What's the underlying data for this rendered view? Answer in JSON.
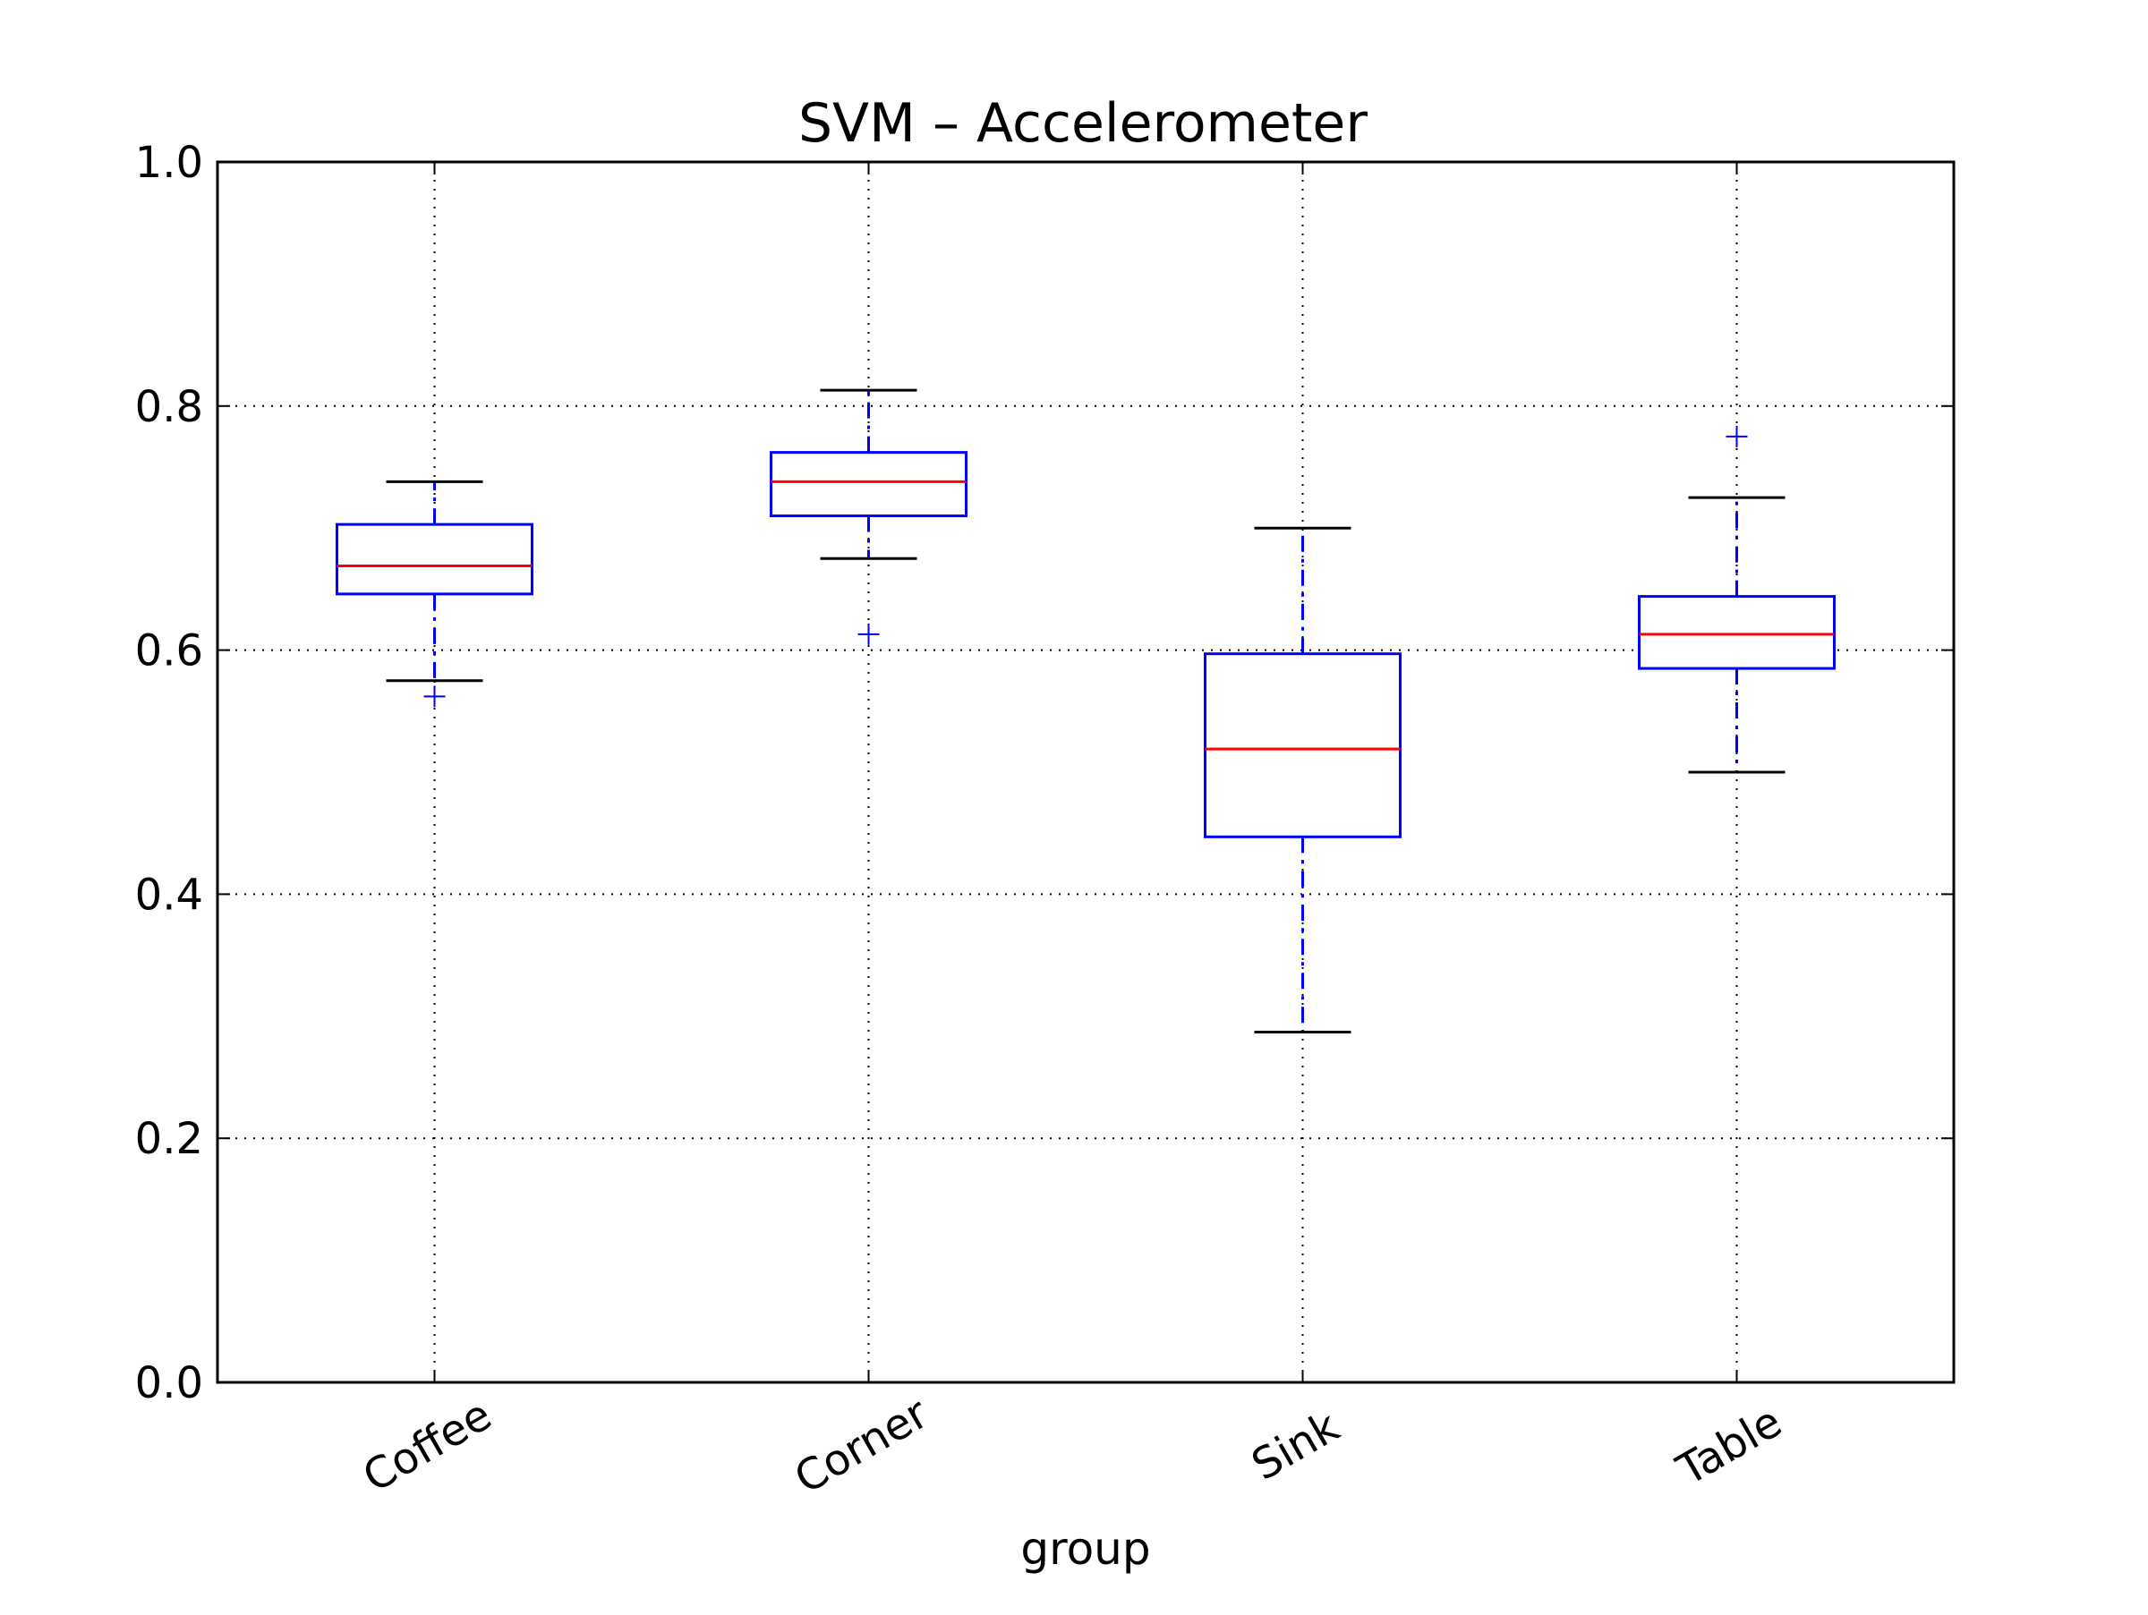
{
  "chart_data": {
    "type": "box",
    "title": "SVM – Accelerometer",
    "xlabel": "group",
    "ylabel": "",
    "ylim": [
      0.0,
      1.0
    ],
    "yticks": [
      "0.0",
      "0.2",
      "0.4",
      "0.6",
      "0.8",
      "1.0"
    ],
    "grid": true,
    "categories": [
      "Coffee",
      "Corner",
      "Sink",
      "Table"
    ],
    "boxes": [
      {
        "category": "Coffee",
        "whisker_low": 0.575,
        "q1": 0.646,
        "median": 0.669,
        "q3": 0.703,
        "whisker_high": 0.738,
        "outliers": [
          0.562
        ]
      },
      {
        "category": "Corner",
        "whisker_low": 0.675,
        "q1": 0.71,
        "median": 0.738,
        "q3": 0.762,
        "whisker_high": 0.813,
        "outliers": [
          0.613
        ]
      },
      {
        "category": "Sink",
        "whisker_low": 0.287,
        "q1": 0.447,
        "median": 0.519,
        "q3": 0.597,
        "whisker_high": 0.7,
        "outliers": []
      },
      {
        "category": "Table",
        "whisker_low": 0.5,
        "q1": 0.585,
        "median": 0.613,
        "q3": 0.644,
        "whisker_high": 0.725,
        "outliers": [
          0.775
        ]
      }
    ],
    "colors": {
      "box": "#0000ff",
      "median": "#ff0000",
      "whisker": "#0000ff",
      "cap": "#000000",
      "flier": "#0000ff",
      "grid": "#000000"
    }
  }
}
